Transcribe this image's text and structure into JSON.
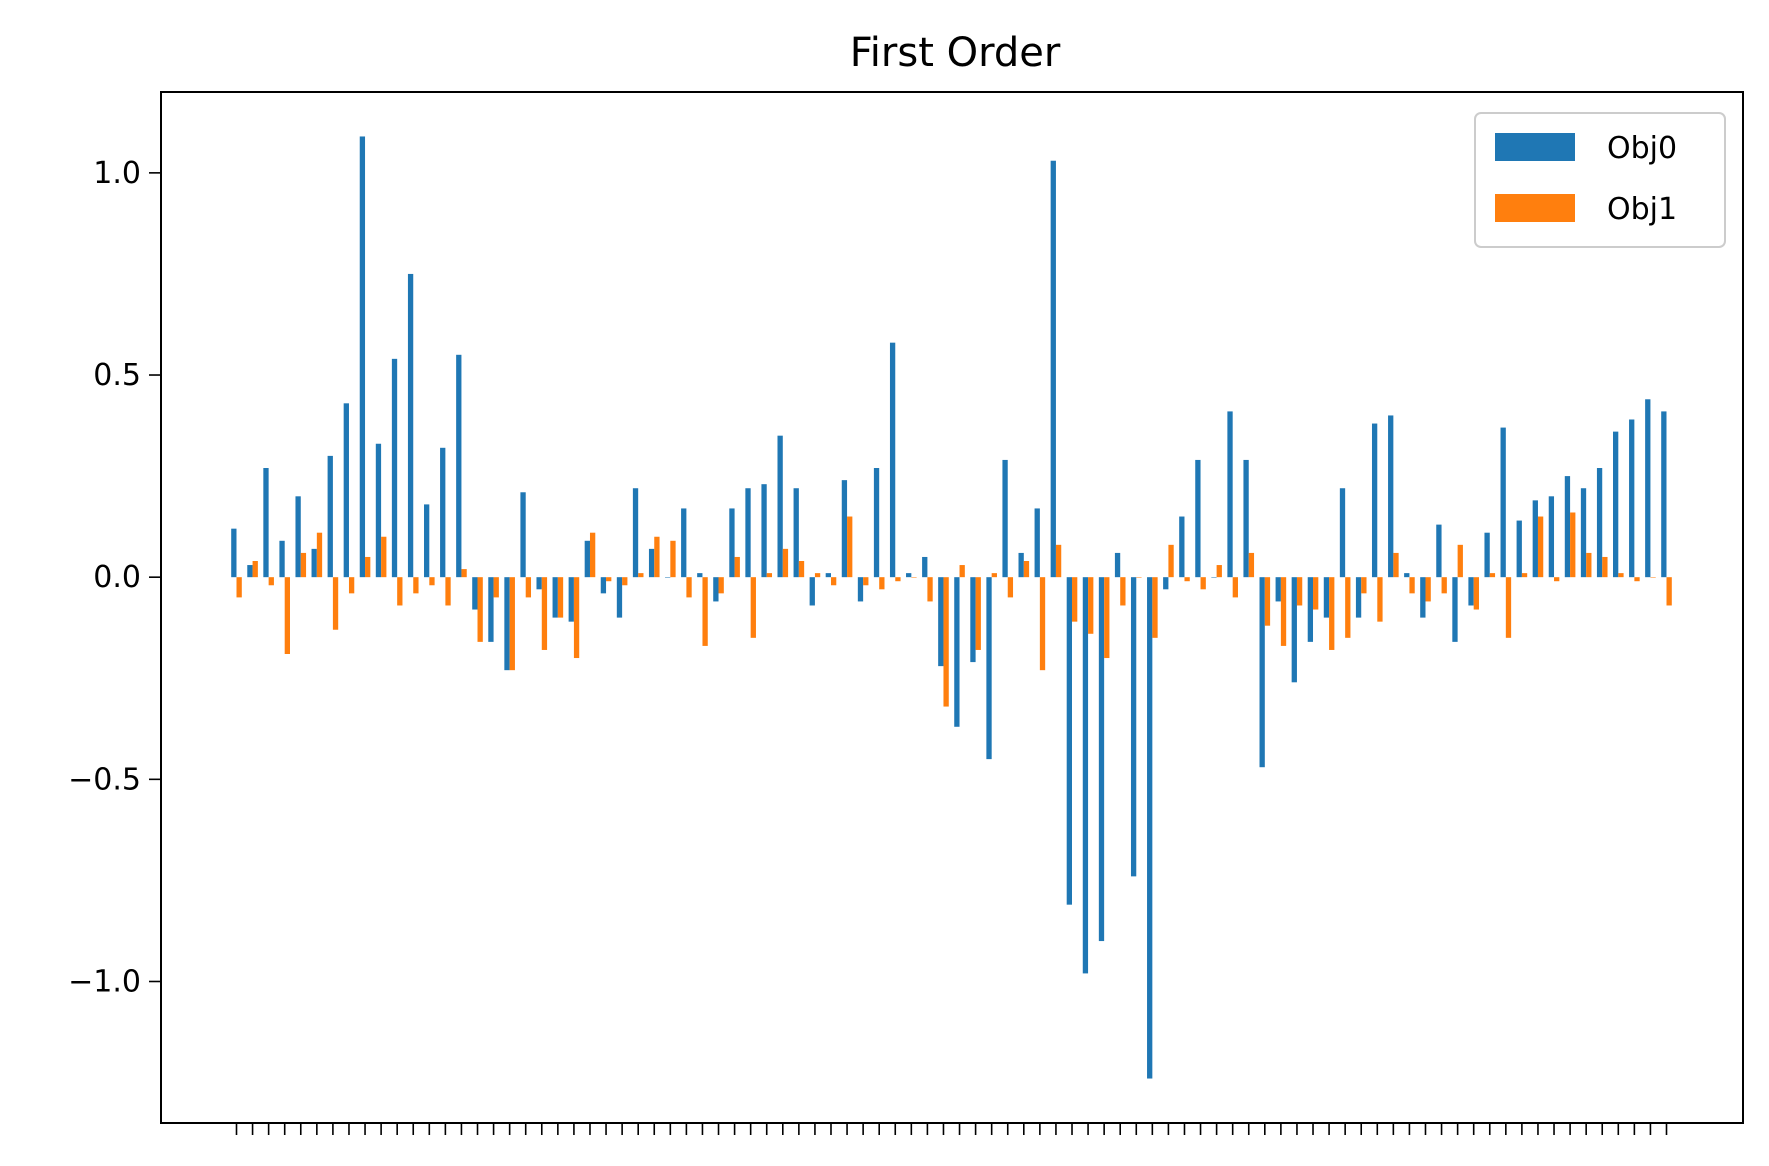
{
  "chart_data": {
    "type": "bar",
    "title": "First Order",
    "xlabel": "",
    "ylabel": "",
    "ylim": [
      -1.35,
      1.2
    ],
    "yticks": [
      -1.0,
      -0.5,
      0.0,
      0.5,
      1.0
    ],
    "ytick_labels": [
      "−1.0",
      "−0.5",
      "0.0",
      "0.5",
      "1.0"
    ],
    "xtick_labels": "none",
    "legend_position": "top-right",
    "grid": false,
    "colors": {
      "Obj0": "#1f77b4",
      "Obj1": "#ff7f0e"
    },
    "series": [
      {
        "name": "Obj0",
        "values": [
          0.12,
          0.03,
          0.27,
          0.09,
          0.2,
          0.07,
          0.3,
          0.43,
          1.09,
          0.33,
          0.54,
          0.75,
          0.18,
          0.32,
          0.55,
          -0.08,
          -0.16,
          -0.23,
          0.21,
          -0.03,
          -0.1,
          -0.11,
          0.09,
          -0.04,
          -0.1,
          0.22,
          0.07,
          0.0,
          0.17,
          0.01,
          -0.06,
          0.17,
          0.22,
          0.23,
          0.35,
          0.22,
          -0.07,
          0.01,
          0.24,
          -0.06,
          0.27,
          0.58,
          0.01,
          0.05,
          -0.22,
          -0.37,
          -0.21,
          -0.45,
          0.29,
          0.06,
          0.17,
          1.03,
          -0.81,
          -0.98,
          -0.9,
          0.06,
          -0.74,
          -1.24,
          -0.03,
          0.15,
          0.29,
          0.0,
          0.41,
          0.29,
          -0.47,
          -0.06,
          -0.26,
          -0.16,
          -0.1,
          0.22,
          -0.1,
          0.38,
          0.4,
          0.01,
          -0.1,
          0.13,
          -0.16,
          -0.07,
          0.11,
          0.37,
          0.14,
          0.19,
          0.2,
          0.25,
          0.22,
          0.27,
          0.36,
          0.39,
          0.44,
          0.41
        ]
      },
      {
        "name": "Obj1",
        "values": [
          -0.05,
          0.04,
          -0.02,
          -0.19,
          0.06,
          0.11,
          -0.13,
          -0.04,
          0.05,
          0.1,
          -0.07,
          -0.04,
          -0.02,
          -0.07,
          0.02,
          -0.16,
          -0.05,
          -0.23,
          -0.05,
          -0.18,
          -0.1,
          -0.2,
          0.11,
          -0.01,
          -0.02,
          0.01,
          0.1,
          0.09,
          -0.05,
          -0.17,
          -0.04,
          0.05,
          -0.15,
          0.01,
          0.07,
          0.04,
          0.01,
          -0.02,
          0.15,
          -0.02,
          -0.03,
          -0.01,
          0.0,
          -0.06,
          -0.32,
          0.03,
          -0.18,
          0.01,
          -0.05,
          0.04,
          -0.23,
          0.08,
          -0.11,
          -0.14,
          -0.2,
          -0.07,
          0.0,
          -0.15,
          0.08,
          -0.01,
          -0.03,
          0.03,
          -0.05,
          0.06,
          -0.12,
          -0.17,
          -0.07,
          -0.08,
          -0.18,
          -0.15,
          -0.04,
          -0.11,
          0.06,
          -0.04,
          -0.06,
          -0.04,
          0.08,
          -0.08,
          0.01,
          -0.15,
          0.01,
          0.15,
          -0.01,
          0.16,
          0.06,
          0.05,
          0.01,
          -0.01,
          0.0,
          -0.07
        ]
      }
    ]
  }
}
